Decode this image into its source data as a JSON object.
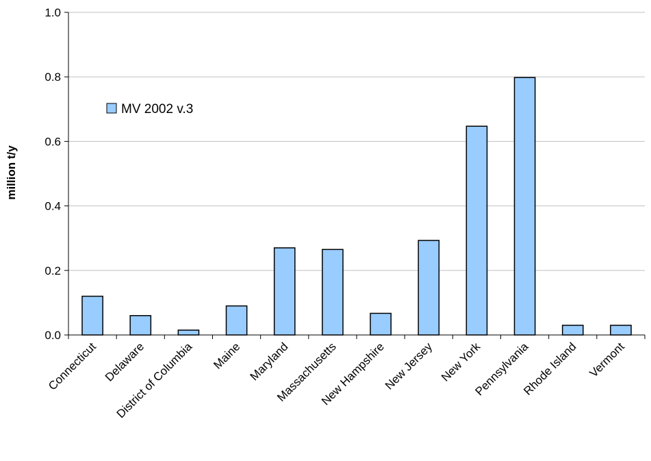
{
  "chart_data": {
    "type": "bar",
    "title": "",
    "xlabel": "",
    "ylabel": "million t/y",
    "ylim": [
      0,
      1.0
    ],
    "yticks": [
      "0.0",
      "0.2",
      "0.4",
      "0.6",
      "0.8",
      "1.0"
    ],
    "grid": true,
    "legend_position": "top-left",
    "bar_color": "#99ccff",
    "bar_edge_color": "#000000",
    "categories": [
      "Connecticut",
      "Delaware",
      "District of Columbia",
      "Maine",
      "Maryland",
      "Massachusetts",
      "New Hampshire",
      "New Jersey",
      "New York",
      "Pennsylvania",
      "Rhode Island",
      "Vermont"
    ],
    "series": [
      {
        "name": "MV 2002 v.3",
        "values": [
          0.12,
          0.06,
          0.015,
          0.09,
          0.27,
          0.265,
          0.067,
          0.293,
          0.647,
          0.798,
          0.03,
          0.03
        ]
      }
    ]
  }
}
